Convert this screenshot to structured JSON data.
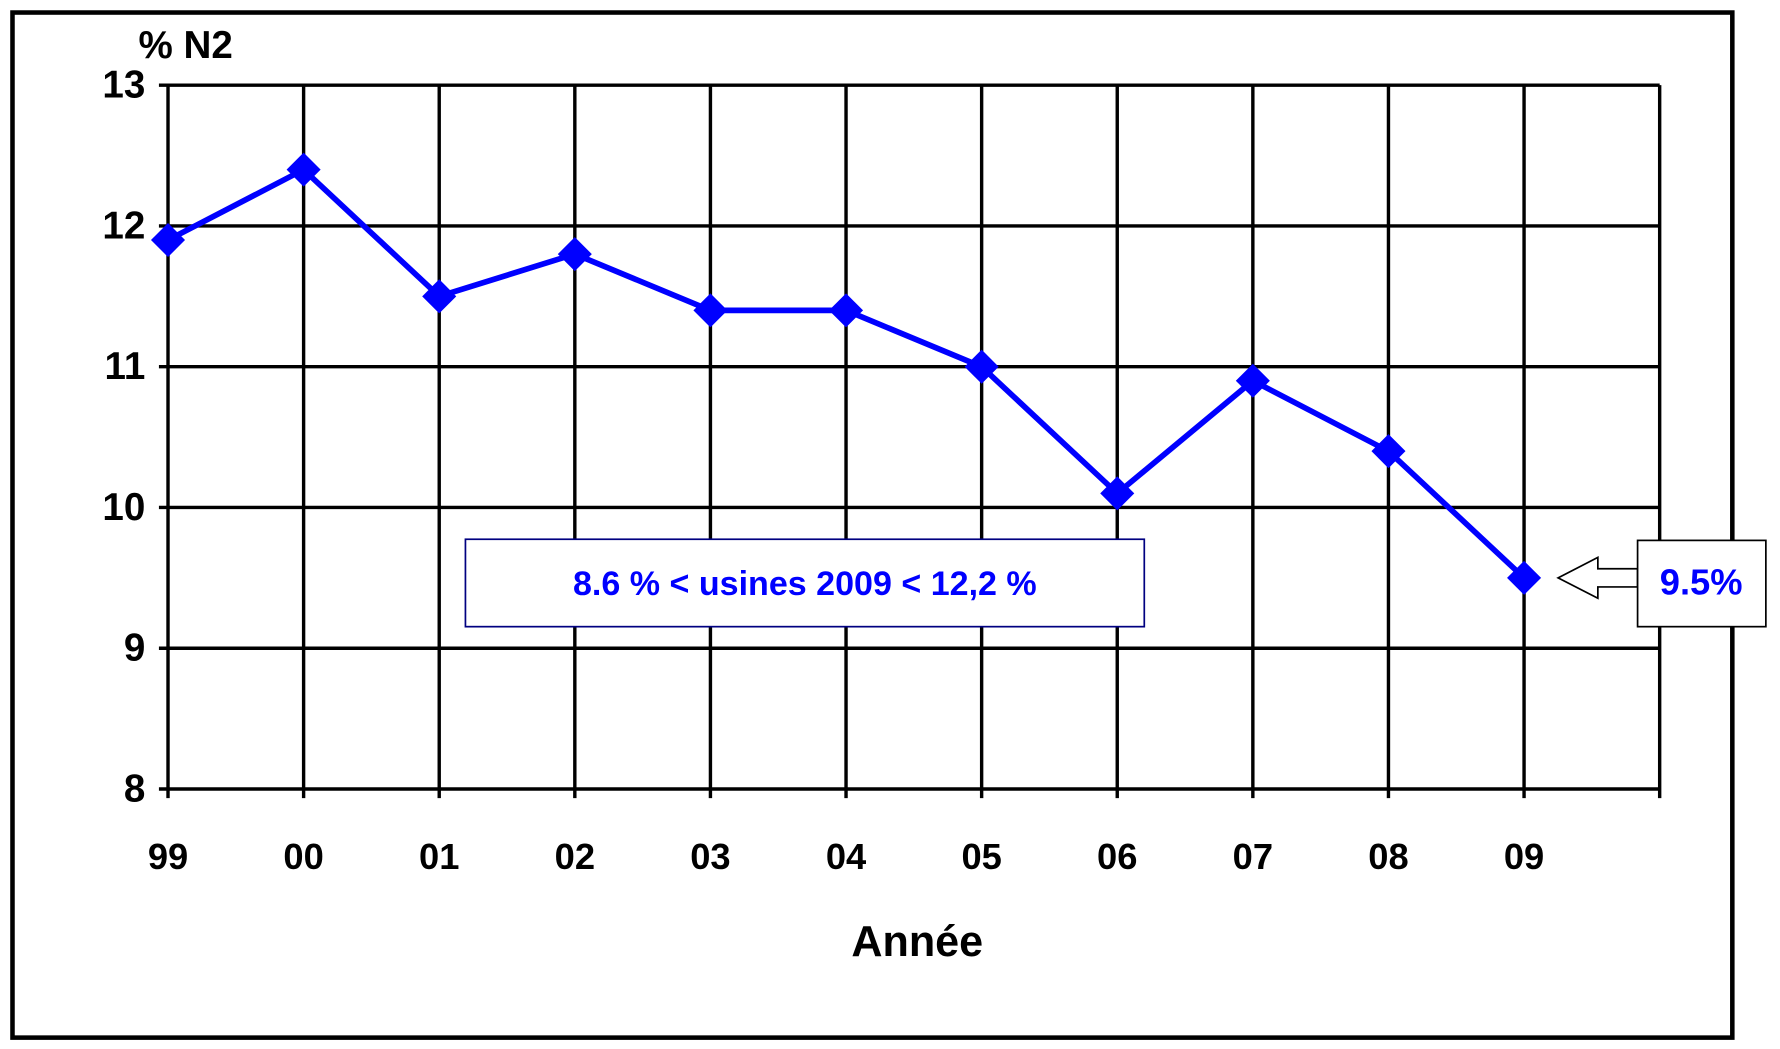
{
  "chart_data": {
    "type": "line",
    "y_label": "% N2",
    "x_label": "Année",
    "categories": [
      "99",
      "00",
      "01",
      "02",
      "03",
      "04",
      "05",
      "06",
      "07",
      "08",
      "09"
    ],
    "series": [
      {
        "color": "#0000ff",
        "values": [
          11.9,
          12.4,
          11.5,
          11.8,
          11.4,
          11.4,
          11.0,
          10.1,
          10.9,
          10.4,
          9.5
        ],
        "value_labels": [
          null,
          null,
          null,
          null,
          null,
          null,
          null,
          null,
          null,
          null,
          "9.5%"
        ]
      }
    ],
    "ylim": [
      8,
      13
    ],
    "yticks": [
      8,
      9,
      10,
      11,
      12,
      13
    ],
    "grid": true,
    "annotations": [
      "8.6 % <  usines 2009 < 12,2 %"
    ]
  }
}
